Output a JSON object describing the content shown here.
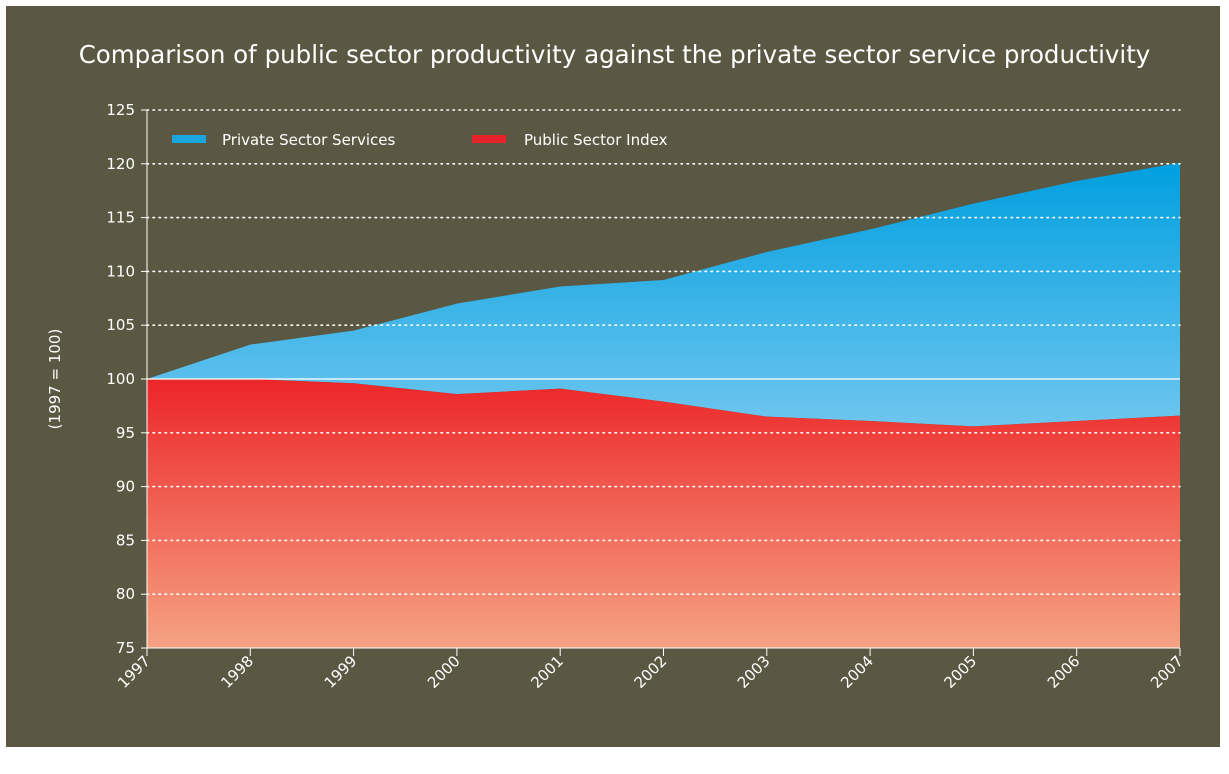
{
  "chart_data": {
    "type": "area",
    "title": "Comparison of public sector productivity against the private sector service productivity",
    "xlabel": "",
    "ylabel": "(1997 = 100)",
    "x": [
      "1997",
      "1998",
      "1999",
      "2000",
      "2001",
      "2002",
      "2003",
      "2004",
      "2005",
      "2006",
      "2007"
    ],
    "ylim": [
      75,
      125
    ],
    "yticks": [
      "75",
      "80",
      "85",
      "90",
      "95",
      "100",
      "105",
      "110",
      "115",
      "120",
      "125"
    ],
    "grid": true,
    "legend_position": "top-left",
    "series": [
      {
        "name": "Private Sector Services",
        "color": "#1aa6dc",
        "values": [
          100,
          103.2,
          104.5,
          107,
          108.6,
          109.2,
          111.8,
          113.9,
          116.3,
          118.4,
          120.1
        ]
      },
      {
        "name": "Public Sector Index",
        "color": "#e8242a",
        "values": [
          100,
          100,
          99.6,
          98.6,
          99.1,
          97.9,
          96.5,
          96.1,
          95.6,
          96.1,
          96.6
        ]
      }
    ]
  }
}
